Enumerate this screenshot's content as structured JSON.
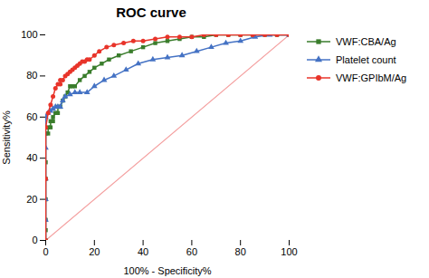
{
  "chart_data": {
    "type": "line",
    "title": "ROC curve",
    "xlabel": "100% - Specificity%",
    "ylabel": "Sensitivity%",
    "xlim": [
      0,
      100
    ],
    "ylim": [
      0,
      100
    ],
    "xticks": [
      0,
      20,
      40,
      60,
      80,
      100
    ],
    "yticks": [
      0,
      20,
      40,
      60,
      80,
      100
    ],
    "grid": false,
    "legend": "right",
    "series": [
      {
        "color": "#f4a0a0",
        "x": [
          0,
          100
        ],
        "values": [
          0,
          100
        ]
      },
      {
        "name": "VWF:CBA/Ag",
        "color": "#3a7d2c",
        "marker": "square",
        "x": [
          0,
          0,
          0,
          0,
          0,
          0,
          0,
          1,
          1,
          2,
          2,
          3,
          3,
          4,
          5,
          5,
          6,
          7,
          8,
          9,
          10,
          11,
          12,
          14,
          16,
          18,
          20,
          23,
          26,
          30,
          35,
          40,
          45,
          50,
          55,
          60,
          65,
          70,
          75,
          80,
          85,
          90,
          95,
          100
        ],
        "values": [
          0,
          5,
          10,
          20,
          30,
          38,
          52,
          52,
          55,
          55,
          58,
          58,
          60,
          62,
          62,
          65,
          65,
          68,
          70,
          72,
          75,
          75,
          75,
          78,
          80,
          82,
          84,
          86,
          88,
          90,
          92,
          94,
          96,
          97,
          98,
          99,
          99,
          100,
          100,
          100,
          100,
          100,
          100,
          100
        ]
      },
      {
        "name": "Platelet count",
        "color": "#4472c4",
        "marker": "triangle",
        "x": [
          0,
          0,
          0,
          0,
          0,
          0,
          1,
          2,
          3,
          4,
          5,
          6,
          7,
          8,
          10,
          12,
          14,
          17,
          20,
          24,
          28,
          33,
          38,
          44,
          50,
          56,
          62,
          68,
          74,
          80,
          86,
          92,
          100
        ],
        "values": [
          0,
          10,
          20,
          30,
          45,
          60,
          62,
          63,
          64,
          65,
          65,
          65,
          68,
          70,
          71,
          72,
          72,
          72,
          75,
          78,
          80,
          83,
          86,
          88,
          89,
          90,
          92,
          94,
          96,
          97,
          99,
          100,
          100
        ]
      },
      {
        "name": "VWF:GPIbM/Ag",
        "color": "#e8342a",
        "marker": "circle",
        "x": [
          0,
          0,
          0,
          1,
          2,
          3,
          4,
          5,
          6,
          6,
          7,
          8,
          9,
          10,
          11,
          12,
          13,
          14,
          15,
          16,
          17,
          18,
          20,
          22,
          25,
          28,
          32,
          36,
          40,
          45,
          50,
          55,
          60,
          65,
          70,
          75,
          80,
          85,
          90,
          95,
          100
        ],
        "values": [
          0,
          30,
          55,
          62,
          66,
          70,
          74,
          76,
          76,
          78,
          78,
          80,
          81,
          82,
          83,
          84,
          85,
          86,
          87,
          87,
          88,
          88,
          90,
          92,
          94,
          95,
          96,
          97,
          97,
          98,
          99,
          99,
          99,
          100,
          100,
          100,
          100,
          100,
          100,
          100,
          100
        ]
      }
    ]
  }
}
